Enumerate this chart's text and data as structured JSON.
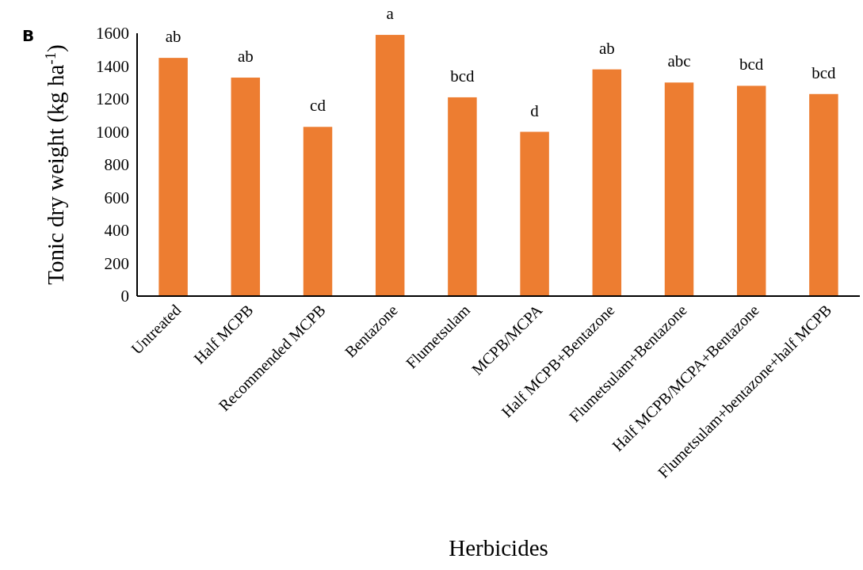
{
  "chart_data": {
    "type": "bar",
    "xlabel": "Herbicides",
    "ylabel": "Tonic dry weight (kg ha$^{-1}$)",
    "categories": [
      "Untreated",
      "Half MCPB",
      "Recommended MCPB",
      "Bentazone",
      "Flumetsulam",
      "MCPB/MCPA",
      "Half MCPB+Bentazone",
      "Flumetsulam+Bentazone",
      "Half MCPB/MCPA+Bentazone",
      "Flumetsulam+bentazone+half MCPB"
    ],
    "values": [
      1450,
      1330,
      1030,
      1590,
      1210,
      1000,
      1380,
      1300,
      1280,
      1230
    ],
    "color": "#ed7d31",
    "ylim": [
      0,
      1600
    ],
    "yticks": [
      0,
      200,
      400,
      600,
      800,
      1000,
      1200,
      1400,
      1600
    ],
    "grid": false,
    "annotations": [
      "B",
      {
        "text": "ab",
        "x": "Untreated",
        "y": 1450
      },
      {
        "text": "ab",
        "x": "Half MCPB",
        "y": 1330
      },
      {
        "text": "cd",
        "x": "Recommended MCPB",
        "y": 1030
      },
      {
        "text": "a",
        "x": "Bentazone",
        "y": 1590
      },
      {
        "text": "bcd",
        "x": "Flumetsulam",
        "y": 1210
      },
      {
        "text": "d",
        "x": "MCPB/MCPA",
        "y": 1000
      },
      {
        "text": "ab",
        "x": "Half MCPB+Bentazone",
        "y": 1380
      },
      {
        "text": "abc",
        "x": "Flumetsulam+Bentazone",
        "y": 1300
      },
      {
        "text": "bcd",
        "x": "Half MCPB/MCPA+Bentazone",
        "y": 1280
      },
      {
        "text": "bcd",
        "x": "Flumetsulam+bentazone+half MCPB",
        "y": 1230
      }
    ]
  }
}
